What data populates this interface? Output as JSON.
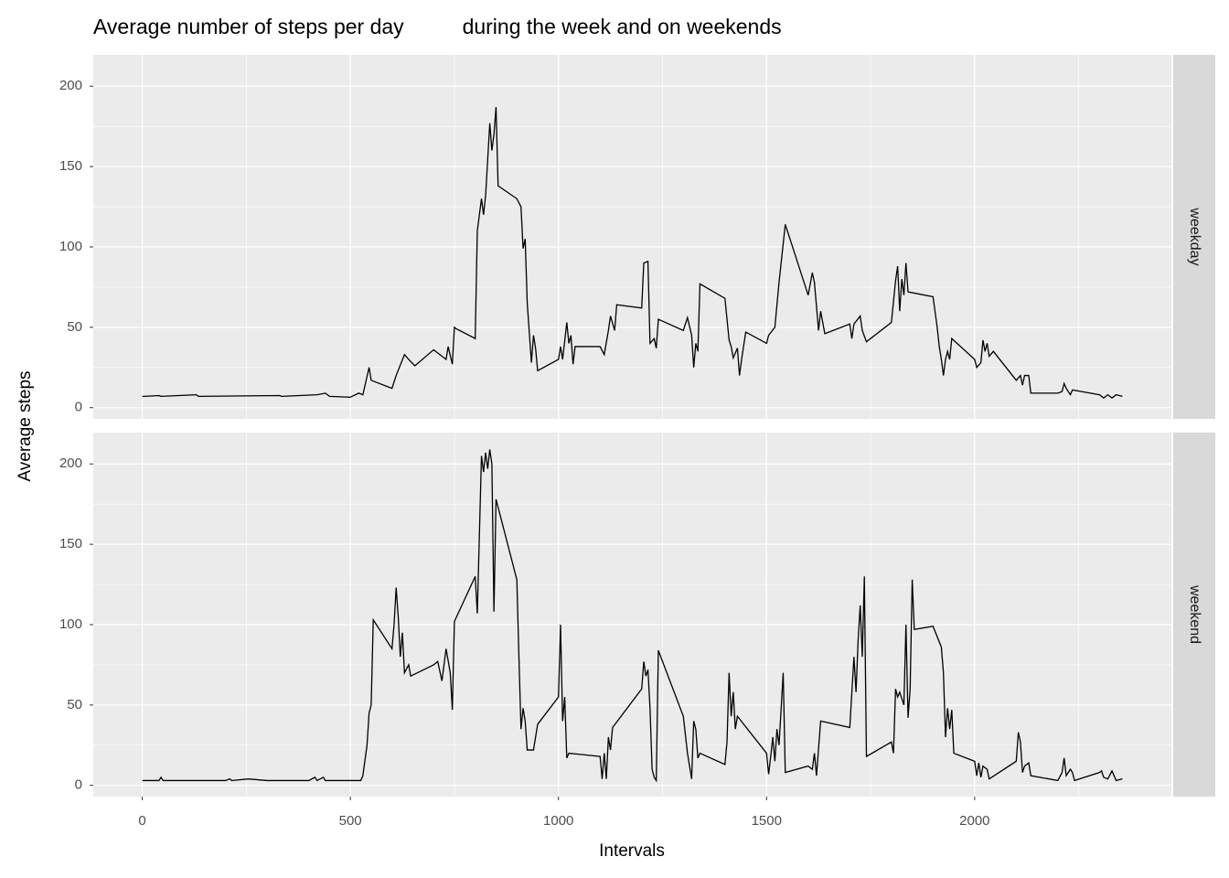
{
  "chart_data": {
    "type": "line",
    "title": "Average number of steps per day          during the week and on weekends",
    "x_label": "Intervals",
    "y_label": "Average steps",
    "xlim": [
      -117.75,
      2472.75
    ],
    "xticks": [
      0,
      500,
      1000,
      1500,
      2000
    ],
    "ylim": [
      -7,
      219.5
    ],
    "yticks": [
      0,
      50,
      100,
      150,
      200
    ],
    "grid": true,
    "color": "#000000",
    "panels": [
      {
        "name": "weekday",
        "x": [
          0,
          5,
          40,
          45,
          130,
          135,
          330,
          335,
          420,
          440,
          450,
          500,
          520,
          530,
          545,
          550,
          600,
          610,
          630,
          640,
          655,
          700,
          730,
          735,
          745,
          750,
          755,
          800,
          805,
          815,
          820,
          825,
          835,
          840,
          845,
          850,
          855,
          900,
          910,
          915,
          920,
          925,
          935,
          940,
          945,
          950,
          1000,
          1005,
          1010,
          1020,
          1025,
          1030,
          1035,
          1040,
          1100,
          1110,
          1120,
          1125,
          1135,
          1140,
          1200,
          1205,
          1215,
          1220,
          1230,
          1235,
          1240,
          1300,
          1310,
          1320,
          1325,
          1330,
          1335,
          1340,
          1400,
          1410,
          1415,
          1420,
          1430,
          1435,
          1440,
          1450,
          1500,
          1505,
          1520,
          1530,
          1545,
          1600,
          1610,
          1615,
          1625,
          1630,
          1640,
          1700,
          1705,
          1710,
          1725,
          1730,
          1740,
          1800,
          1810,
          1815,
          1820,
          1825,
          1830,
          1835,
          1840,
          1900,
          1910,
          1915,
          1920,
          1925,
          1930,
          1935,
          1940,
          1945,
          2000,
          2005,
          2015,
          2020,
          2025,
          2030,
          2035,
          2045,
          2100,
          2110,
          2115,
          2120,
          2130,
          2135,
          2200,
          2210,
          2215,
          2220,
          2230,
          2235,
          2300,
          2310,
          2320,
          2330,
          2340,
          2355
        ],
        "values": [
          7,
          7,
          7.5,
          7,
          8,
          7,
          7.5,
          7,
          8,
          9,
          7,
          6.5,
          9,
          8,
          25,
          17,
          12,
          20,
          33,
          30,
          26,
          36,
          30,
          38,
          27,
          50,
          49,
          43,
          110,
          130,
          120,
          132,
          177,
          160,
          170,
          187,
          138,
          130,
          125,
          99,
          105,
          65,
          28,
          45,
          37,
          23,
          30,
          38,
          30,
          53,
          40,
          45,
          27,
          38,
          38,
          33,
          48,
          57,
          48,
          64,
          62,
          90,
          91,
          40,
          43,
          37,
          55,
          48,
          56,
          45,
          25,
          40,
          35,
          77,
          68,
          42,
          38,
          31,
          37,
          20,
          30,
          47,
          40,
          45,
          50,
          78,
          114,
          70,
          84,
          78,
          48,
          60,
          46,
          52,
          43,
          52,
          57,
          48,
          41,
          53,
          79,
          88,
          60,
          80,
          70,
          90,
          72,
          69,
          50,
          38,
          30,
          20,
          30,
          35,
          30,
          43,
          30,
          25,
          28,
          42,
          35,
          40,
          32,
          35,
          17,
          20,
          14,
          20,
          20,
          9,
          9,
          10,
          15,
          12,
          8,
          11,
          8,
          6,
          8,
          6,
          8,
          7
        ]
      },
      {
        "name": "weekend",
        "x": [
          0,
          5,
          40,
          45,
          50,
          200,
          210,
          215,
          255,
          300,
          400,
          415,
          420,
          435,
          440,
          500,
          525,
          530,
          540,
          545,
          550,
          555,
          600,
          605,
          610,
          615,
          620,
          625,
          630,
          640,
          645,
          700,
          710,
          720,
          730,
          740,
          745,
          750,
          800,
          805,
          815,
          820,
          825,
          830,
          835,
          840,
          845,
          850,
          900,
          905,
          910,
          915,
          920,
          925,
          940,
          950,
          1000,
          1005,
          1010,
          1015,
          1020,
          1025,
          1100,
          1105,
          1110,
          1115,
          1120,
          1125,
          1130,
          1200,
          1205,
          1210,
          1215,
          1220,
          1225,
          1230,
          1235,
          1240,
          1300,
          1310,
          1315,
          1320,
          1325,
          1330,
          1335,
          1340,
          1400,
          1405,
          1410,
          1415,
          1420,
          1425,
          1430,
          1500,
          1505,
          1510,
          1515,
          1520,
          1525,
          1530,
          1540,
          1545,
          1600,
          1610,
          1615,
          1620,
          1630,
          1700,
          1710,
          1715,
          1720,
          1725,
          1730,
          1735,
          1740,
          1800,
          1805,
          1810,
          1815,
          1820,
          1830,
          1835,
          1840,
          1845,
          1850,
          1855,
          1900,
          1920,
          1925,
          1930,
          1935,
          1940,
          1945,
          1950,
          2000,
          2005,
          2010,
          2015,
          2020,
          2030,
          2035,
          2100,
          2105,
          2110,
          2115,
          2120,
          2130,
          2135,
          2200,
          2210,
          2215,
          2220,
          2230,
          2235,
          2240,
          2300,
          2305,
          2310,
          2320,
          2330,
          2340,
          2355
        ],
        "values": [
          3,
          3,
          3,
          5,
          3,
          3,
          4,
          3,
          4,
          3,
          3,
          5,
          3,
          5,
          3,
          3,
          3,
          6,
          25,
          45,
          50,
          103,
          85,
          100,
          123,
          105,
          80,
          95,
          70,
          75,
          68,
          75,
          77,
          65,
          85,
          70,
          47,
          102,
          130,
          107,
          205,
          195,
          207,
          197,
          209,
          200,
          108,
          178,
          128,
          80,
          35,
          48,
          40,
          22,
          22,
          38,
          55,
          100,
          40,
          55,
          17,
          20,
          18,
          4,
          20,
          4,
          30,
          22,
          36,
          60,
          77,
          68,
          72,
          48,
          10,
          5,
          3,
          84,
          43,
          20,
          12,
          4,
          40,
          35,
          17,
          20,
          13,
          27,
          70,
          43,
          58,
          35,
          43,
          20,
          7,
          18,
          30,
          15,
          35,
          25,
          70,
          8,
          12,
          10,
          20,
          6,
          40,
          36,
          80,
          58,
          90,
          112,
          80,
          130,
          18,
          27,
          20,
          60,
          55,
          58,
          50,
          100,
          42,
          60,
          128,
          97,
          99,
          86,
          70,
          30,
          48,
          35,
          47,
          20,
          15,
          6,
          14,
          5,
          12,
          10,
          4,
          15,
          33,
          27,
          8,
          12,
          14,
          6,
          3,
          8,
          17,
          6,
          10,
          8,
          3,
          8,
          9,
          5,
          4,
          9,
          3,
          4
        ]
      }
    ]
  }
}
